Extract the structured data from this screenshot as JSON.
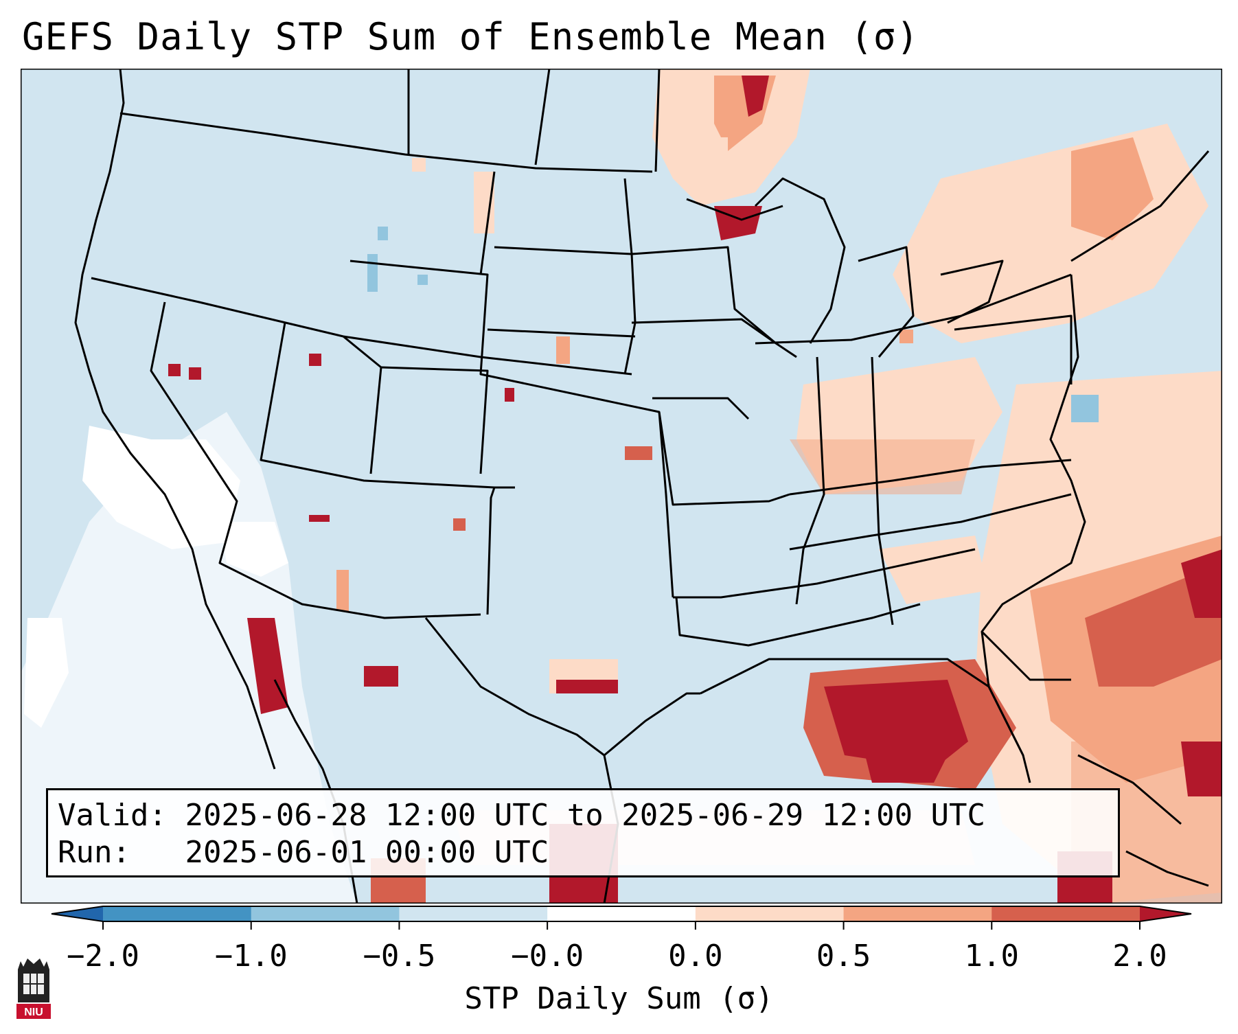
{
  "title": "GEFS Daily STP Sum of Ensemble Mean (σ)",
  "info": {
    "valid_label": "Valid:",
    "valid_value": "2025-06-28 12:00 UTC to 2025-06-29 12:00 UTC",
    "run_label": "Run:",
    "run_value": "2025-06-01 00:00 UTC"
  },
  "colorbar": {
    "label": "STP Daily Sum (σ)",
    "ticks": [
      "−2.0",
      "−1.0",
      "−0.5",
      "−0.0",
      "0.0",
      "0.5",
      "1.0",
      "2.0"
    ],
    "bins": [
      {
        "range": "< -2.0",
        "color": "#2166ac"
      },
      {
        "range": "-2.0 to -1.0",
        "color": "#4393c3"
      },
      {
        "range": "-1.0 to -0.5",
        "color": "#92c5de"
      },
      {
        "range": "-0.5 to -0.0",
        "color": "#d1e5f0"
      },
      {
        "range": "-0.0 to 0.0",
        "color": "#ffffff"
      },
      {
        "range": "0.0 to 0.5",
        "color": "#fddbc7"
      },
      {
        "range": "0.5 to 1.0",
        "color": "#f4a582"
      },
      {
        "range": "1.0 to 2.0",
        "color": "#d6604d"
      },
      {
        "range": "> 2.0",
        "color": "#b2182b"
      }
    ]
  },
  "map": {
    "background_color": "#d1e5f0",
    "region": "Contiguous United States"
  },
  "logo": {
    "text": "NIU"
  }
}
